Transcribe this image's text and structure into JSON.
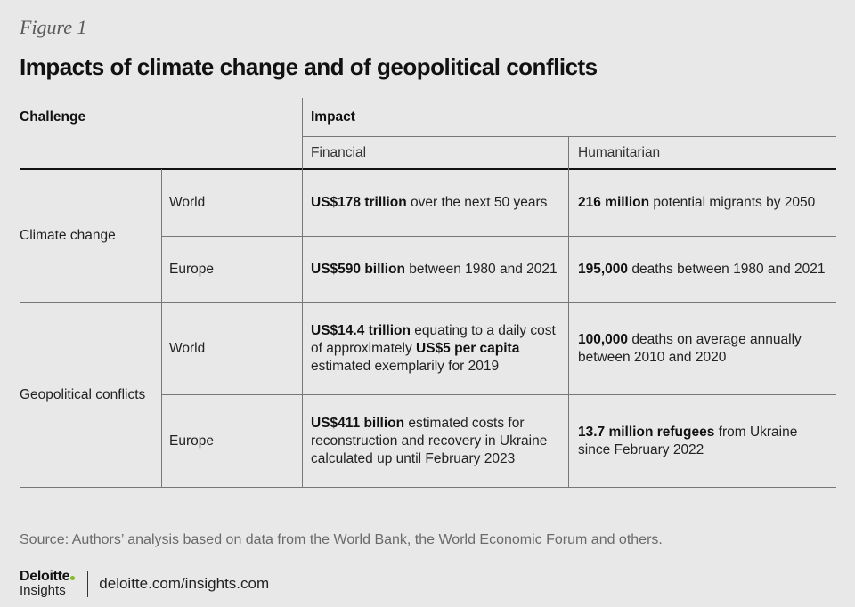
{
  "figure_label": "Figure 1",
  "title": "Impacts of climate change and of geopolitical conflicts",
  "table": {
    "col_challenge": "Challenge",
    "col_impact": "Impact",
    "col_financial": "Financial",
    "col_humanitarian": "Humanitarian",
    "groups": [
      {
        "challenge": "Climate change",
        "rows": [
          {
            "region": "World",
            "financial_bold": "US$178 trillion",
            "financial_text": " over the next 50 years",
            "humanitarian_bold": "216 million",
            "humanitarian_text": " potential migrants by 2050"
          },
          {
            "region": "Europe",
            "financial_bold": "US$590 billion",
            "financial_text": " between 1980 and 2021",
            "humanitarian_bold": "195,000",
            "humanitarian_text": " deaths between 1980 and 2021"
          }
        ]
      },
      {
        "challenge": "Geopolitical conflicts",
        "rows": [
          {
            "region": "World",
            "financial_bold": "US$14.4 trillion",
            "financial_text": " equating to a daily cost of approximately ",
            "financial_bold2": "US$5 per capita",
            "financial_text2": " estimated exemplarily for 2019",
            "humanitarian_bold": "100,000",
            "humanitarian_text": " deaths on average annually between 2010 and 2020"
          },
          {
            "region": "Europe",
            "financial_bold": "US$411 billion",
            "financial_text": " estimated costs for reconstruction and recovery in Ukraine calculated up until February 2023",
            "humanitarian_bold": "13.7 million refugees",
            "humanitarian_text": " from Ukraine since February 2022"
          }
        ]
      }
    ]
  },
  "source": "Source: Authors’ analysis based on data from the World Bank, the World Economic Forum and others.",
  "footer": {
    "brand": "Deloitte",
    "sub_brand": "Insights",
    "url": "deloitte.com/insights.com"
  },
  "colors": {
    "background": "#e8e8e8",
    "brand_dot": "#86bc25"
  }
}
